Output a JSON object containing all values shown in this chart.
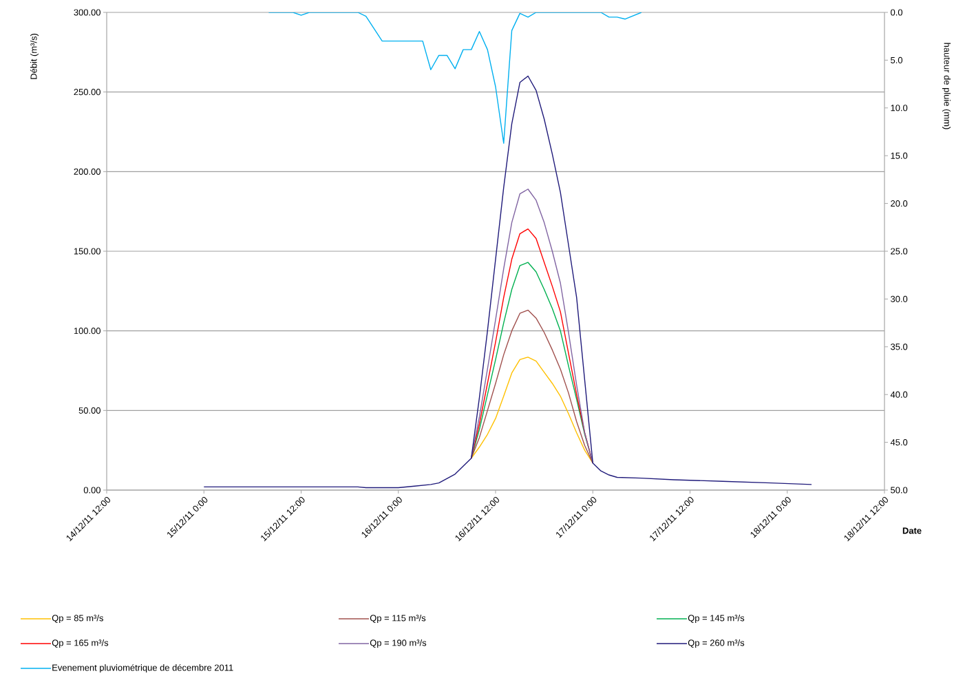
{
  "chart_data": {
    "type": "line",
    "ylabel": "Débit (m³/s)",
    "y2label": "hauteur de pluie (mm)",
    "xlabel": "Date",
    "xlim": [
      "2011-12-14T12:00",
      "2011-12-18T12:00"
    ],
    "xticks": [
      {
        "value": "2011-12-14T12:00",
        "label": "14/12/11 12:00"
      },
      {
        "value": "2011-12-15T00:00",
        "label": "15/12/11 0:00"
      },
      {
        "value": "2011-12-15T12:00",
        "label": "15/12/11 12:00"
      },
      {
        "value": "2011-12-16T00:00",
        "label": "16/12/11 0:00"
      },
      {
        "value": "2011-12-16T12:00",
        "label": "16/12/11 12:00"
      },
      {
        "value": "2011-12-17T00:00",
        "label": "17/12/11 0:00"
      },
      {
        "value": "2011-12-17T12:00",
        "label": "17/12/11 12:00"
      },
      {
        "value": "2011-12-18T00:00",
        "label": "18/12/11 0:00"
      },
      {
        "value": "2011-12-18T12:00",
        "label": "18/12/11 12:00"
      }
    ],
    "ylim": [
      0,
      300
    ],
    "yticks": [
      {
        "value": 0,
        "label": "0.00"
      },
      {
        "value": 50,
        "label": "50.00"
      },
      {
        "value": 100,
        "label": "100.00"
      },
      {
        "value": 150,
        "label": "150.00"
      },
      {
        "value": 200,
        "label": "200.00"
      },
      {
        "value": 250,
        "label": "250.00"
      },
      {
        "value": 300,
        "label": "300.00"
      }
    ],
    "y2lim": [
      50,
      0
    ],
    "y2ticks": [
      {
        "value": 0,
        "label": "0.0"
      },
      {
        "value": 5,
        "label": "5.0"
      },
      {
        "value": 10,
        "label": "10.0"
      },
      {
        "value": 15,
        "label": "15.0"
      },
      {
        "value": 20,
        "label": "20.0"
      },
      {
        "value": 25,
        "label": "25.0"
      },
      {
        "value": 30,
        "label": "30.0"
      },
      {
        "value": 35,
        "label": "35.0"
      },
      {
        "value": 40,
        "label": "40.0"
      },
      {
        "value": 45,
        "label": "45.0"
      },
      {
        "value": 50,
        "label": "50.0"
      }
    ],
    "grid": "y",
    "legend": "bottom",
    "x": [
      "2011-12-15T00:00",
      "2011-12-15T19:00",
      "2011-12-15T20:00",
      "2011-12-16T00:00",
      "2011-12-16T01:00",
      "2011-12-16T02:00",
      "2011-12-16T04:00",
      "2011-12-16T05:00",
      "2011-12-16T07:00",
      "2011-12-16T09:00",
      "2011-12-16T10:00",
      "2011-12-16T11:00",
      "2011-12-16T12:00",
      "2011-12-16T13:00",
      "2011-12-16T14:00",
      "2011-12-16T15:00",
      "2011-12-16T16:00",
      "2011-12-16T17:00",
      "2011-12-16T18:00",
      "2011-12-16T19:00",
      "2011-12-16T20:00",
      "2011-12-16T21:00",
      "2011-12-16T22:00",
      "2011-12-16T23:00",
      "2011-12-17T00:00",
      "2011-12-17T01:00",
      "2011-12-17T02:00",
      "2011-12-17T03:00",
      "2011-12-17T06:00",
      "2011-12-17T10:00",
      "2011-12-17T16:00",
      "2011-12-17T22:00",
      "2011-12-18T03:00"
    ],
    "series": [
      {
        "name": "Qp = 85 m³/s",
        "color": "#ffc000",
        "values": [
          null,
          null,
          null,
          null,
          null,
          null,
          null,
          null,
          null,
          20,
          27,
          35,
          45,
          59,
          73.5,
          82,
          83.5,
          81,
          74,
          67,
          59,
          48,
          36,
          25,
          17,
          null,
          null,
          null,
          null,
          null,
          null,
          null,
          null
        ]
      },
      {
        "name": "Qp = 115 m³/s",
        "color": "#a0504d",
        "values": [
          null,
          null,
          null,
          null,
          null,
          null,
          null,
          null,
          null,
          20,
          33,
          50,
          67,
          85,
          100,
          111,
          113,
          108,
          99,
          88,
          76,
          61,
          43,
          28,
          17,
          null,
          null,
          null,
          null,
          null,
          null,
          null,
          null
        ]
      },
      {
        "name": "Qp = 145 m³/s",
        "color": "#00b050",
        "values": [
          null,
          null,
          null,
          null,
          null,
          null,
          null,
          null,
          null,
          20,
          38,
          60,
          82,
          105,
          126,
          141,
          143,
          137,
          126,
          114,
          100,
          78,
          57,
          35,
          17,
          null,
          null,
          null,
          null,
          null,
          null,
          null,
          null
        ]
      },
      {
        "name": "Qp = 165 m³/s",
        "color": "#ff0000",
        "values": [
          null,
          null,
          null,
          null,
          null,
          null,
          null,
          null,
          null,
          20,
          41.5,
          67,
          93,
          121,
          145,
          161,
          164,
          158,
          143,
          128,
          112,
          86,
          60,
          36,
          17,
          null,
          null,
          null,
          null,
          null,
          null,
          null,
          null
        ]
      },
      {
        "name": "Qp = 190 m³/s",
        "color": "#8064a2",
        "values": [
          null,
          null,
          null,
          null,
          null,
          null,
          null,
          null,
          null,
          20,
          46,
          76,
          107,
          139,
          168,
          186,
          189,
          182,
          168,
          150,
          130,
          99,
          66,
          36,
          17,
          null,
          null,
          null,
          null,
          null,
          null,
          null,
          null
        ]
      },
      {
        "name": "Qp = 260 m³/s",
        "color": "#1f1a7a",
        "values": [
          2,
          2,
          1.5,
          1.5,
          2,
          2.5,
          3.5,
          4.5,
          10,
          20,
          58,
          100,
          145,
          190,
          230,
          256,
          260,
          251,
          233,
          211,
          187,
          154,
          121,
          69,
          17,
          12,
          9.5,
          8,
          7.5,
          6.5,
          5.5,
          4.5,
          3.5
        ]
      },
      {
        "name": "Evenement pluviométrique de décembre 2011",
        "color": "#00b0f0",
        "axis": "y2",
        "x": [
          "2011-12-15T08:00",
          "2011-12-15T11:00",
          "2011-12-15T12:00",
          "2011-12-15T13:00",
          "2011-12-15T19:00",
          "2011-12-15T20:00",
          "2011-12-15T21:00",
          "2011-12-15T22:00",
          "2011-12-16T03:00",
          "2011-12-16T04:00",
          "2011-12-16T05:00",
          "2011-12-16T06:00",
          "2011-12-16T07:00",
          "2011-12-16T08:00",
          "2011-12-16T09:00",
          "2011-12-16T10:00",
          "2011-12-16T11:00",
          "2011-12-16T12:00",
          "2011-12-16T13:00",
          "2011-12-16T14:00",
          "2011-12-16T15:00",
          "2011-12-16T16:00",
          "2011-12-16T17:00",
          "2011-12-17T01:00",
          "2011-12-17T02:00",
          "2011-12-17T03:00",
          "2011-12-17T04:00",
          "2011-12-17T06:00"
        ],
        "values": [
          0,
          0,
          0.3,
          0,
          0,
          0.4,
          1.7,
          3,
          3,
          6,
          4.5,
          4.5,
          5.9,
          3.9,
          3.9,
          2,
          3.9,
          7.8,
          13.7,
          1.9,
          0.1,
          0.5,
          0,
          0,
          0.5,
          0.5,
          0.7,
          0
        ]
      }
    ]
  }
}
